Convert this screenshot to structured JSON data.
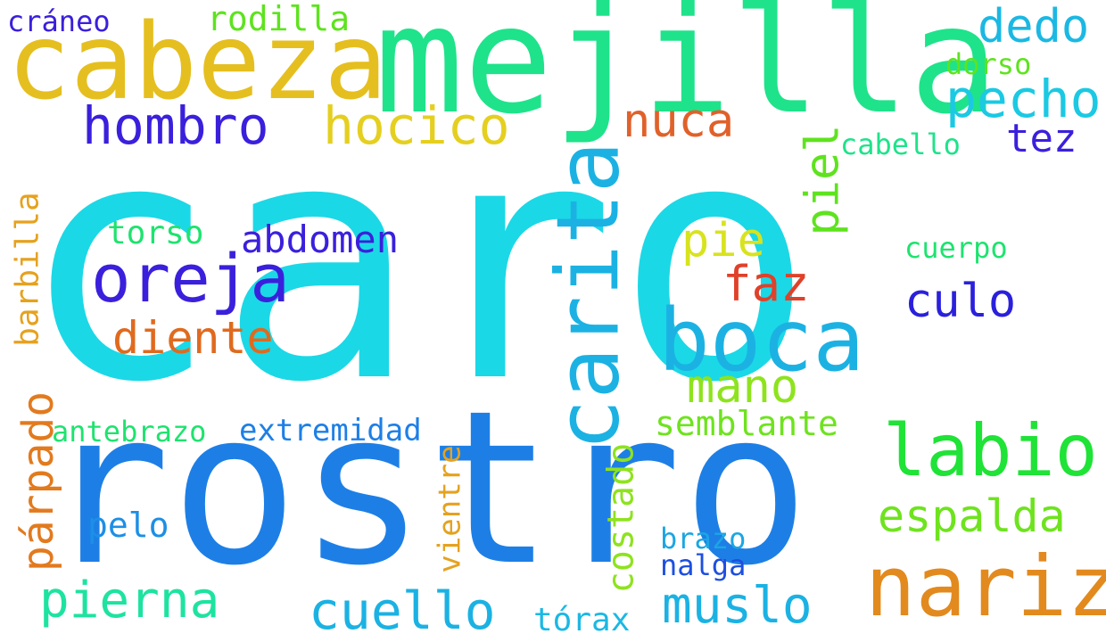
{
  "words": [
    {
      "text": "caro",
      "color": "#1bd8e6"
    },
    {
      "text": "rostro",
      "color": "#1d7fe6"
    },
    {
      "text": "mejilla",
      "color": "#1ee38a"
    },
    {
      "text": "cabeza",
      "color": "#e5bf1f"
    },
    {
      "text": "nariz",
      "color": "#e28a1e"
    },
    {
      "text": "boca",
      "color": "#1bb2e3"
    },
    {
      "text": "carita",
      "color": "#1bb2e3"
    },
    {
      "text": "labio",
      "color": "#1fe336"
    },
    {
      "text": "oreja",
      "color": "#3a20dc"
    },
    {
      "text": "hombro",
      "color": "#3a20dc"
    },
    {
      "text": "hocico",
      "color": "#e5cf1f"
    },
    {
      "text": "pecho",
      "color": "#1bc9e3"
    },
    {
      "text": "dedo",
      "color": "#1bb8e3"
    },
    {
      "text": "nuca",
      "color": "#e0612a"
    },
    {
      "text": "rodilla",
      "color": "#5ee31e"
    },
    {
      "text": "cráneo",
      "color": "#3a20dc"
    },
    {
      "text": "dorso",
      "color": "#5ee31e"
    },
    {
      "text": "cabello",
      "color": "#1ee38a"
    },
    {
      "text": "tez",
      "color": "#3a20dc"
    },
    {
      "text": "piel",
      "color": "#5ee31e"
    },
    {
      "text": "pie",
      "color": "#d8e31e"
    },
    {
      "text": "faz",
      "color": "#e0412a"
    },
    {
      "text": "culo",
      "color": "#2a20dc"
    },
    {
      "text": "cuerpo",
      "color": "#1ee36f"
    },
    {
      "text": "abdomen",
      "color": "#3a20dc"
    },
    {
      "text": "torso",
      "color": "#1ee36f"
    },
    {
      "text": "diente",
      "color": "#e06a1e"
    },
    {
      "text": "mano",
      "color": "#8ee31e"
    },
    {
      "text": "semblante",
      "color": "#6ee31e"
    },
    {
      "text": "espalda",
      "color": "#6ee31e"
    },
    {
      "text": "barbilla",
      "color": "#e5a21f"
    },
    {
      "text": "párpado",
      "color": "#e27a1e"
    },
    {
      "text": "antebrazo",
      "color": "#1ee36f"
    },
    {
      "text": "extremidad",
      "color": "#1d7fe6"
    },
    {
      "text": "pelo",
      "color": "#1d8fe6"
    },
    {
      "text": "vientre",
      "color": "#e5a21f"
    },
    {
      "text": "costado",
      "color": "#8ee31e"
    },
    {
      "text": "brazo",
      "color": "#1ba6e3"
    },
    {
      "text": "nalga",
      "color": "#1d4fe0"
    },
    {
      "text": "pierna",
      "color": "#1ee3a0"
    },
    {
      "text": "cuello",
      "color": "#1bb2e3"
    },
    {
      "text": "muslo",
      "color": "#1bb2e3"
    },
    {
      "text": "tórax",
      "color": "#1bb8e3"
    }
  ]
}
